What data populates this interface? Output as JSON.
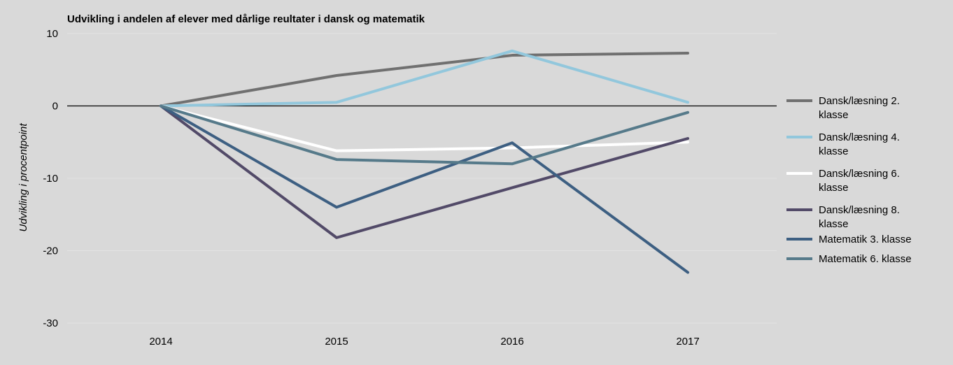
{
  "chart_data": {
    "type": "line",
    "title": "Udvikling i andelen af elever med dårlige reultater i dansk og matematik",
    "xlabel": "",
    "ylabel": "Udvikling i procentpoint",
    "x": [
      "2014",
      "2015",
      "2016",
      "2017"
    ],
    "ylim": [
      -30,
      10
    ],
    "yticks": [
      10,
      0,
      -10,
      -20,
      -30
    ],
    "grid": true,
    "legend_position": "right",
    "series": [
      {
        "name": "Dansk/læsning 2. klasse",
        "color": "#707070",
        "values": [
          0,
          4.2,
          7.0,
          7.3
        ]
      },
      {
        "name": "Dansk/læsning 4. klasse",
        "color": "#92c7dc",
        "values": [
          0,
          0.5,
          7.6,
          0.5
        ]
      },
      {
        "name": "Dansk/læsning 6. klasse",
        "color": "#ffffff",
        "values": [
          0,
          -6.2,
          -5.8,
          -5.0
        ]
      },
      {
        "name": "Dansk/læsning 8. klasse",
        "color": "#524a68",
        "values": [
          0,
          -18.2,
          -11.3,
          -4.5
        ]
      },
      {
        "name": "Matematik 3. klasse",
        "color": "#3d5f82",
        "values": [
          0,
          -14.0,
          -5.1,
          -23.0
        ]
      },
      {
        "name": "Matematik 6. klasse",
        "color": "#567a8a",
        "values": [
          0,
          -7.4,
          -8.0,
          -0.9
        ]
      }
    ]
  }
}
